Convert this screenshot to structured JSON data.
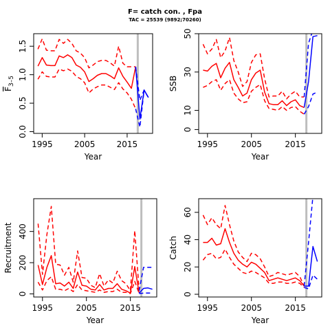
{
  "header": {
    "title": "F= catch con. , Fpa",
    "subtitle": "TAC = 25539 (9892;70260)"
  },
  "colors": {
    "historical": "#ff0000",
    "projection": "#0000ff",
    "divider": "#bebebe"
  },
  "chart_data": [
    {
      "id": "fbar",
      "type": "line",
      "xlabel": "Year",
      "ylabel": "F",
      "ylabel_sub": "3–5",
      "xlim": [
        1993,
        2021
      ],
      "ylim": [
        -0.03,
        1.72
      ],
      "xticks": [
        1995,
        2005,
        2015
      ],
      "yticks": [
        0.0,
        0.5,
        1.0,
        1.5
      ],
      "ytick_labels": [
        "0.0",
        "0.5",
        "1.0",
        "1.5"
      ],
      "divider_x": 2017.5,
      "series": [
        {
          "role": "median",
          "color": "historical",
          "dash": false,
          "x": [
            1994,
            1995,
            1996,
            1997,
            1998,
            1999,
            2000,
            2001,
            2002,
            2003,
            2004,
            2005,
            2006,
            2007,
            2008,
            2009,
            2010,
            2011,
            2012,
            2013,
            2014,
            2015,
            2016,
            2017
          ],
          "y": [
            1.15,
            1.3,
            1.17,
            1.16,
            1.16,
            1.33,
            1.3,
            1.35,
            1.3,
            1.17,
            1.13,
            1.05,
            0.88,
            0.93,
            0.99,
            1.02,
            1.02,
            0.98,
            0.93,
            1.12,
            0.97,
            0.87,
            0.76,
            1.14
          ]
        },
        {
          "role": "upper",
          "color": "historical",
          "dash": true,
          "x": [
            1994,
            1995,
            1996,
            1997,
            1998,
            1999,
            2000,
            2001,
            2002,
            2003,
            2004,
            2005,
            2006,
            2007,
            2008,
            2009,
            2010,
            2011,
            2012,
            2013,
            2014,
            2015,
            2016,
            2017
          ],
          "y": [
            1.45,
            1.63,
            1.43,
            1.42,
            1.42,
            1.62,
            1.55,
            1.62,
            1.55,
            1.42,
            1.38,
            1.3,
            1.12,
            1.17,
            1.23,
            1.25,
            1.25,
            1.21,
            1.15,
            1.5,
            1.2,
            1.14,
            1.14,
            1.14
          ]
        },
        {
          "role": "lower",
          "color": "historical",
          "dash": true,
          "x": [
            1994,
            1995,
            1996,
            1997,
            1998,
            1999,
            2000,
            2001,
            2002,
            2003,
            2004,
            2005,
            2006,
            2007,
            2008,
            2009,
            2010,
            2011,
            2012,
            2013,
            2014,
            2015,
            2016,
            2017
          ],
          "y": [
            0.92,
            1.05,
            0.97,
            0.96,
            0.96,
            1.1,
            1.07,
            1.1,
            1.06,
            0.97,
            0.93,
            0.86,
            0.68,
            0.75,
            0.79,
            0.82,
            0.82,
            0.78,
            0.74,
            0.86,
            0.75,
            0.68,
            0.57,
            0.4
          ]
        },
        {
          "role": "median",
          "color": "projection",
          "dash": false,
          "x": [
            2017,
            2018,
            2019,
            2020
          ],
          "y": [
            1.14,
            0.22,
            0.73,
            0.6
          ]
        },
        {
          "role": "upper",
          "color": "projection",
          "dash": true,
          "x": [
            2017,
            2018,
            2019,
            2020
          ],
          "y": [
            1.14,
            0.55,
            0.73,
            0.6
          ]
        },
        {
          "role": "lower",
          "color": "projection",
          "dash": true,
          "x": [
            2017,
            2018,
            2019,
            2020
          ],
          "y": [
            0.4,
            0.08,
            0.73,
            0.6
          ]
        }
      ]
    },
    {
      "id": "ssb",
      "type": "line",
      "xlabel": "Year",
      "ylabel": "SSB",
      "xlim": [
        1993,
        2021
      ],
      "ylim": [
        -2,
        50
      ],
      "xticks": [
        1995,
        2005,
        2015
      ],
      "yticks": [
        0,
        10,
        30,
        50
      ],
      "ytick_labels": [
        "0",
        "10",
        "30",
        "50"
      ],
      "divider_x": 2017.5,
      "series": [
        {
          "role": "median",
          "color": "historical",
          "dash": false,
          "x": [
            1994,
            1995,
            1996,
            1997,
            1998,
            1999,
            2000,
            2001,
            2002,
            2003,
            2004,
            2005,
            2006,
            2007,
            2008,
            2009,
            2010,
            2011,
            2012,
            2013,
            2014,
            2015,
            2016,
            2017
          ],
          "y": [
            31,
            30.5,
            33,
            34.5,
            27,
            32,
            35,
            26,
            22,
            17.5,
            19,
            26,
            29.5,
            31,
            19.5,
            13.5,
            13,
            13,
            15,
            12.5,
            14.5,
            15.5,
            12.5,
            11.5
          ]
        },
        {
          "role": "upper",
          "color": "historical",
          "dash": true,
          "x": [
            1994,
            1995,
            1996,
            1997,
            1998,
            1999,
            2000,
            2001,
            2002,
            2003,
            2004,
            2005,
            2006,
            2007,
            2008,
            2009,
            2010,
            2011,
            2012,
            2013,
            2014,
            2015,
            2016,
            2017
          ],
          "y": [
            44.5,
            39.5,
            42,
            47,
            37.5,
            41,
            48,
            36,
            30,
            22.5,
            25,
            35,
            39,
            39.5,
            26.5,
            17,
            17.5,
            17.5,
            20,
            16,
            18.5,
            20,
            17,
            17
          ]
        },
        {
          "role": "lower",
          "color": "historical",
          "dash": true,
          "x": [
            1994,
            1995,
            1996,
            1997,
            1998,
            1999,
            2000,
            2001,
            2002,
            2003,
            2004,
            2005,
            2006,
            2007,
            2008,
            2009,
            2010,
            2011,
            2012,
            2013,
            2014,
            2015,
            2016,
            2017
          ],
          "y": [
            22,
            23,
            25,
            26,
            20.5,
            24,
            26,
            19,
            16,
            14,
            14.5,
            20,
            22,
            23.5,
            15,
            11,
            10.5,
            10,
            12,
            10,
            11.5,
            12,
            9.5,
            8
          ]
        },
        {
          "role": "median",
          "color": "projection",
          "dash": false,
          "x": [
            2017,
            2018,
            2019,
            2020
          ],
          "y": [
            11.5,
            25,
            48.5,
            49
          ]
        },
        {
          "role": "upper",
          "color": "projection",
          "dash": true,
          "x": [
            2017,
            2018,
            2019,
            2020
          ],
          "y": [
            17,
            45,
            52,
            52
          ]
        },
        {
          "role": "lower",
          "color": "projection",
          "dash": true,
          "x": [
            2017,
            2018,
            2019,
            2020
          ],
          "y": [
            8,
            12,
            18.5,
            19.5
          ]
        }
      ]
    },
    {
      "id": "recruitment",
      "type": "line",
      "xlabel": "Year",
      "ylabel": "Recruitment",
      "xlim": [
        1993,
        2021
      ],
      "ylim": [
        -20,
        610
      ],
      "xticks": [
        1995,
        2005,
        2015
      ],
      "yticks": [
        0,
        200,
        400
      ],
      "ytick_labels": [
        "0",
        "200",
        "400"
      ],
      "divider_x": 2017.5,
      "series": [
        {
          "role": "median",
          "color": "historical",
          "dash": false,
          "x": [
            1994,
            1995,
            1996,
            1997,
            1998,
            1999,
            2000,
            2001,
            2002,
            2003,
            2004,
            2005,
            2006,
            2007,
            2008,
            2009,
            2010,
            2011,
            2012,
            2013,
            2014,
            2015,
            2016,
            2017
          ],
          "y": [
            185,
            60,
            170,
            245,
            65,
            70,
            50,
            75,
            35,
            140,
            55,
            50,
            30,
            25,
            60,
            25,
            35,
            35,
            65,
            30,
            20,
            5,
            175,
            5
          ]
        },
        {
          "role": "upper",
          "color": "historical",
          "dash": true,
          "x": [
            1994,
            1995,
            1996,
            1997,
            1998,
            1999,
            2000,
            2001,
            2002,
            2003,
            2004,
            2005,
            2006,
            2007,
            2008,
            2009,
            2010,
            2011,
            2012,
            2013,
            2014,
            2015,
            2016,
            2017
          ],
          "y": [
            450,
            125,
            380,
            560,
            190,
            185,
            120,
            170,
            75,
            275,
            105,
            100,
            55,
            40,
            130,
            50,
            90,
            70,
            145,
            85,
            65,
            20,
            405,
            20
          ]
        },
        {
          "role": "lower",
          "color": "historical",
          "dash": true,
          "x": [
            1994,
            1995,
            1996,
            1997,
            1998,
            1999,
            2000,
            2001,
            2002,
            2003,
            2004,
            2005,
            2006,
            2007,
            2008,
            2009,
            2010,
            2011,
            2012,
            2013,
            2014,
            2015,
            2016,
            2017
          ],
          "y": [
            75,
            25,
            85,
            110,
            30,
            30,
            20,
            35,
            15,
            60,
            25,
            20,
            15,
            10,
            25,
            10,
            15,
            15,
            30,
            10,
            10,
            2,
            80,
            2
          ]
        },
        {
          "role": "median",
          "color": "projection",
          "dash": false,
          "x": [
            2017,
            2018,
            2019,
            2020
          ],
          "y": [
            5,
            35,
            38,
            30
          ]
        },
        {
          "role": "upper",
          "color": "projection",
          "dash": true,
          "x": [
            2017,
            2018,
            2019,
            2020
          ],
          "y": [
            20,
            170,
            170,
            170
          ]
        },
        {
          "role": "lower",
          "color": "projection",
          "dash": true,
          "x": [
            2017,
            2018,
            2019,
            2020
          ],
          "y": [
            2,
            5,
            5,
            5
          ]
        }
      ]
    },
    {
      "id": "catch",
      "type": "line",
      "xlabel": "Year",
      "ylabel": "Catch",
      "xlim": [
        1993,
        2021
      ],
      "ylim": [
        -2,
        70
      ],
      "xticks": [
        1995,
        2005,
        2015
      ],
      "yticks": [
        0,
        20,
        40,
        60
      ],
      "ytick_labels": [
        "0",
        "20",
        "40",
        "60"
      ],
      "divider_x": 2017.5,
      "series": [
        {
          "role": "median",
          "color": "historical",
          "dash": false,
          "x": [
            1994,
            1995,
            1996,
            1997,
            1998,
            1999,
            2000,
            2001,
            2002,
            2003,
            2004,
            2005,
            2006,
            2007,
            2008,
            2009,
            2010,
            2011,
            2012,
            2013,
            2014,
            2015,
            2016,
            2017
          ],
          "y": [
            38,
            38,
            41,
            36,
            37,
            48,
            38,
            30,
            25,
            22,
            20,
            23.5,
            22,
            19,
            16,
            10,
            11,
            12,
            11,
            10,
            11,
            12,
            10,
            6
          ]
        },
        {
          "role": "upper",
          "color": "historical",
          "dash": true,
          "x": [
            1994,
            1995,
            1996,
            1997,
            1998,
            1999,
            2000,
            2001,
            2002,
            2003,
            2004,
            2005,
            2006,
            2007,
            2008,
            2009,
            2010,
            2011,
            2012,
            2013,
            2014,
            2015,
            2016,
            2017
          ],
          "y": [
            58,
            51,
            56,
            51,
            48,
            65,
            51,
            39,
            31,
            27,
            24,
            30,
            29,
            26,
            20,
            13,
            14,
            16,
            15,
            14,
            15,
            16,
            13,
            6
          ]
        },
        {
          "role": "lower",
          "color": "historical",
          "dash": true,
          "x": [
            1994,
            1995,
            1996,
            1997,
            1998,
            1999,
            2000,
            2001,
            2002,
            2003,
            2004,
            2005,
            2006,
            2007,
            2008,
            2009,
            2010,
            2011,
            2012,
            2013,
            2014,
            2015,
            2016,
            2017
          ],
          "y": [
            25,
            29,
            30,
            26,
            27,
            33,
            27,
            22,
            19,
            16,
            15,
            17,
            16,
            14,
            12,
            8,
            8,
            9,
            9,
            8,
            8,
            9,
            8,
            5
          ]
        },
        {
          "role": "median",
          "color": "projection",
          "dash": false,
          "x": [
            2017,
            2018,
            2019,
            2020
          ],
          "y": [
            6,
            6,
            35,
            24
          ]
        },
        {
          "role": "upper",
          "color": "projection",
          "dash": true,
          "x": [
            2017,
            2018,
            2019,
            2020
          ],
          "y": [
            6,
            38,
            72,
            72
          ]
        },
        {
          "role": "lower",
          "color": "projection",
          "dash": true,
          "x": [
            2017,
            2018,
            2019,
            2020
          ],
          "y": [
            5,
            4,
            14,
            11
          ]
        }
      ]
    }
  ]
}
